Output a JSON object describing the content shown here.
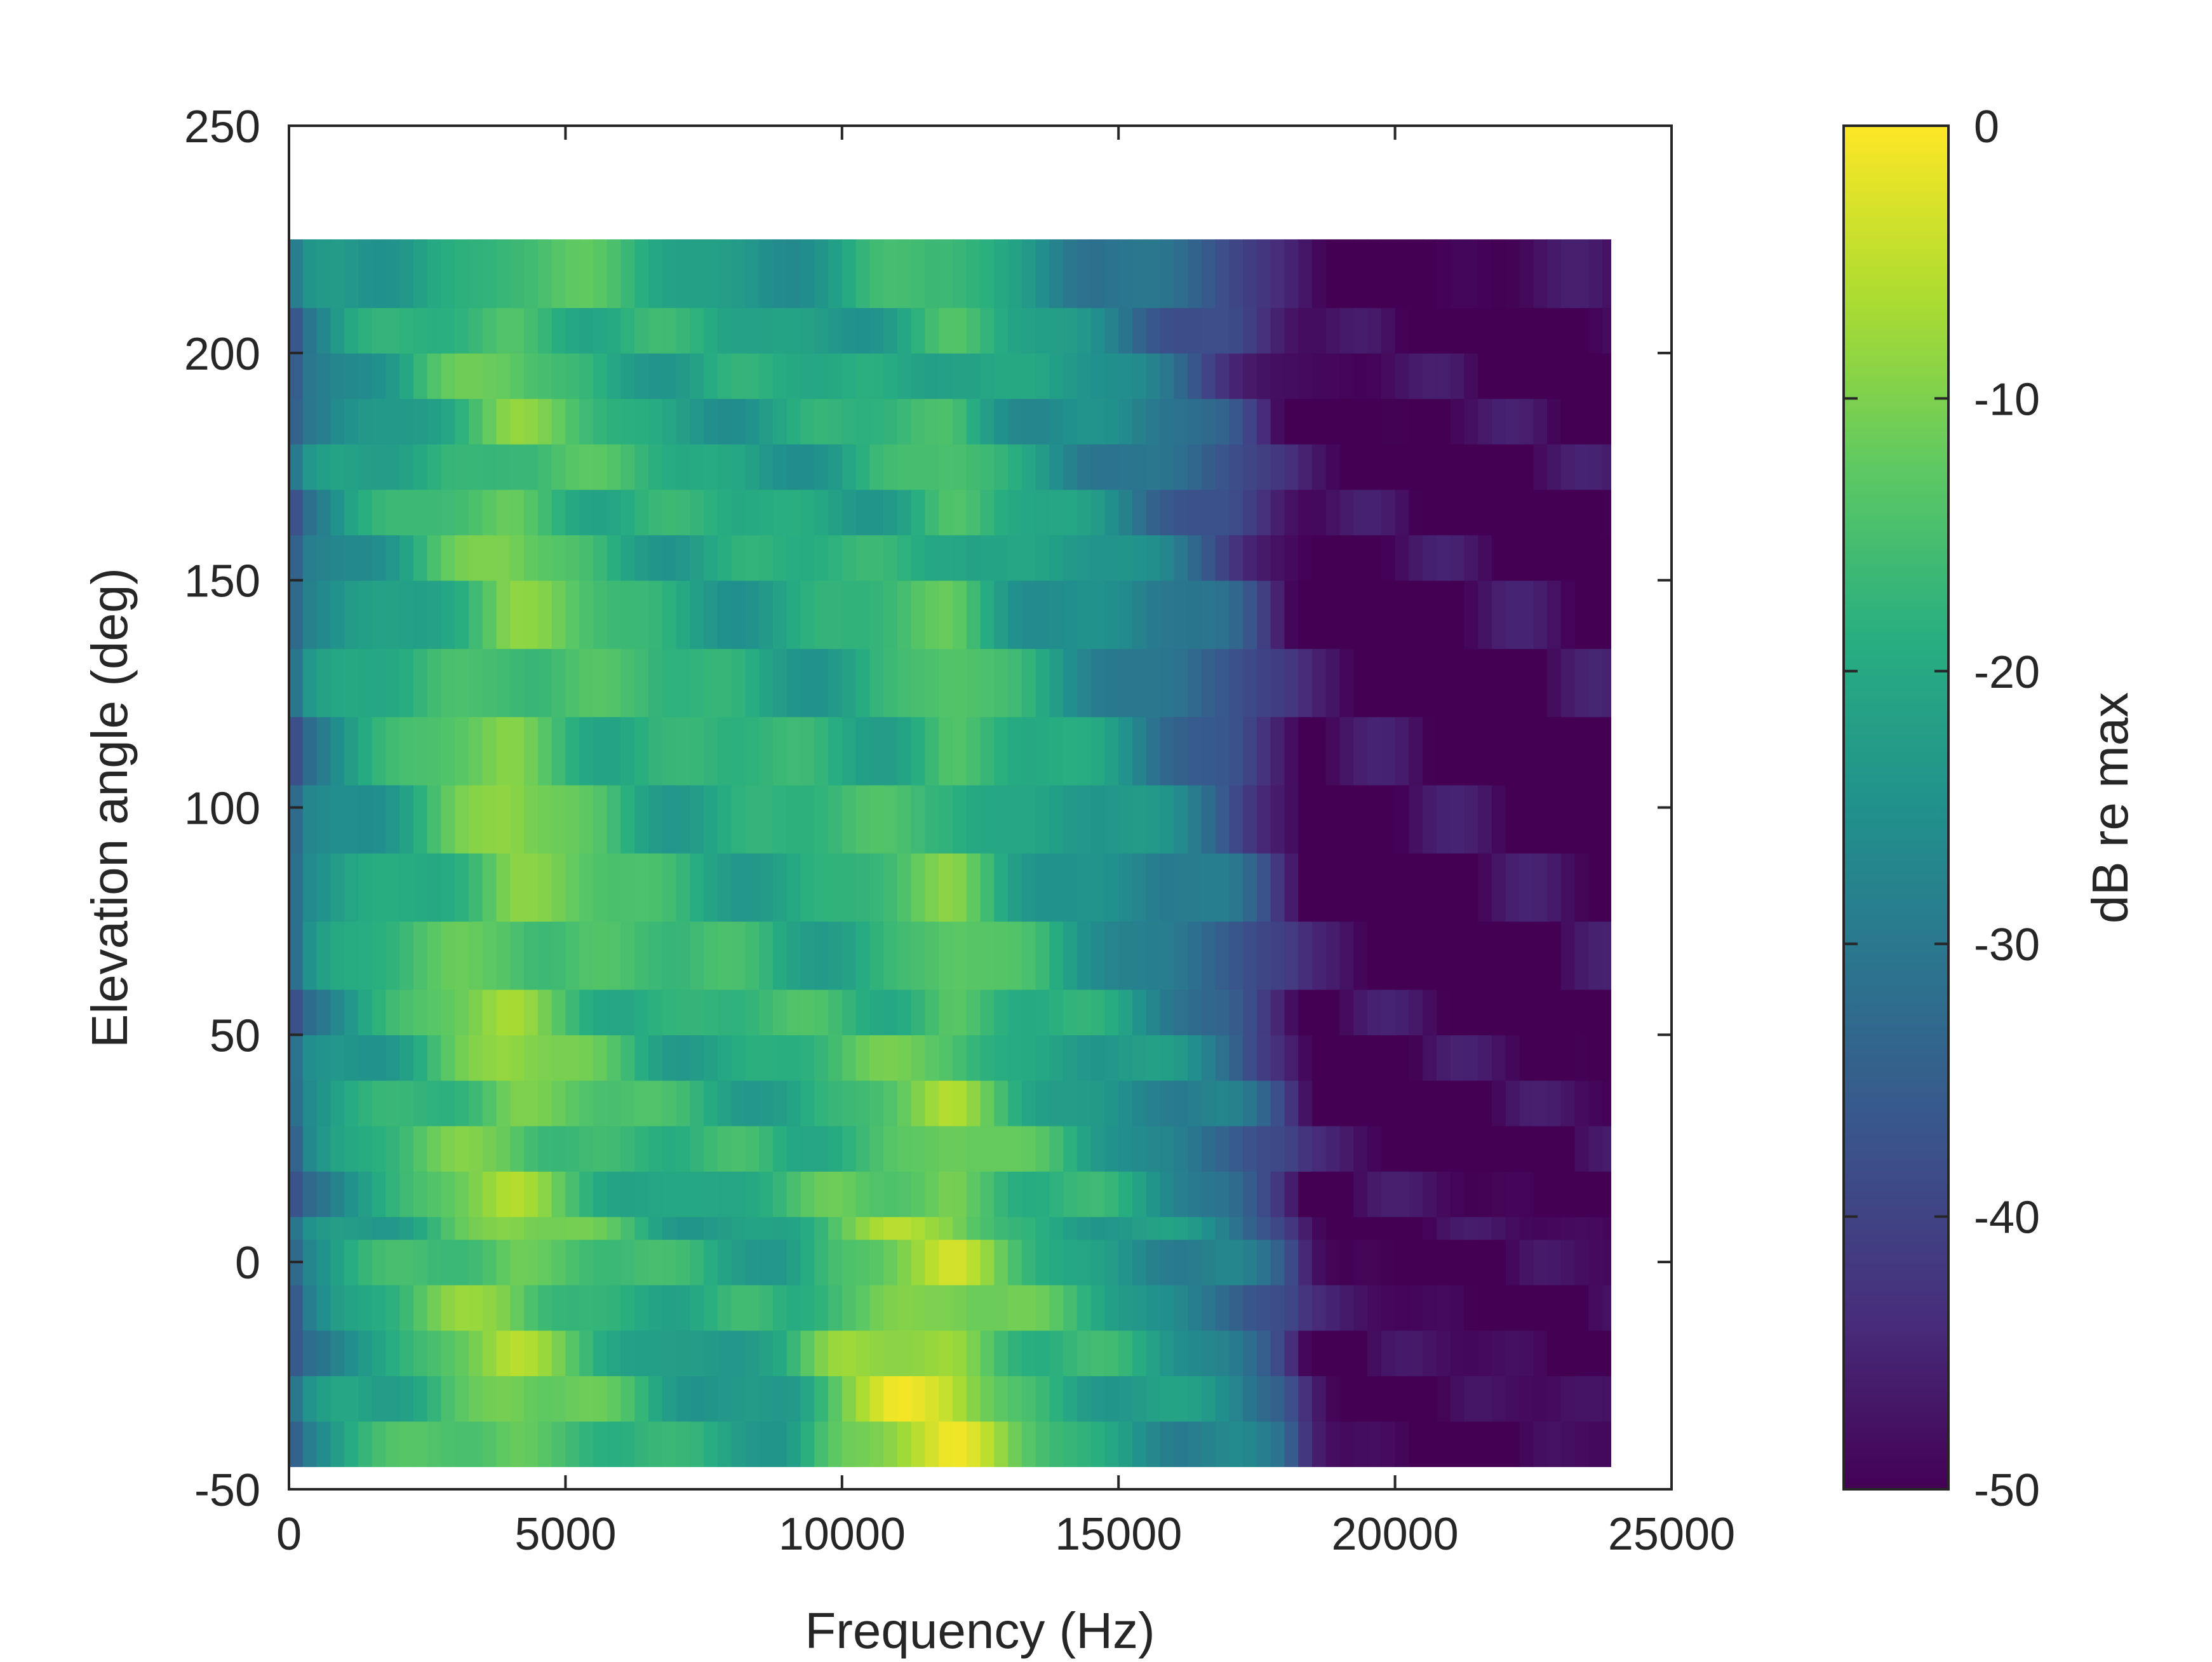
{
  "chart_data": {
    "type": "heatmap",
    "title": "",
    "xlabel": "Frequency (Hz)",
    "ylabel": "Elevation angle (deg)",
    "xlim": [
      0,
      25000
    ],
    "ylim": [
      -50,
      250
    ],
    "x_ticks": [
      0,
      5000,
      10000,
      15000,
      20000,
      25000
    ],
    "x_tick_labels": [
      "0",
      "5000",
      "10000",
      "15000",
      "20000",
      "25000"
    ],
    "y_ticks": [
      -50,
      0,
      50,
      100,
      150,
      200,
      250
    ],
    "y_tick_labels": [
      "-50",
      "0",
      "50",
      "100",
      "150",
      "200",
      "250"
    ],
    "data_extent": {
      "x": [
        0,
        23900
      ],
      "y": [
        -45,
        225
      ]
    },
    "colormap": "viridis",
    "colorbar": {
      "label": "dB re max",
      "range": [
        -50,
        0
      ],
      "ticks": [
        0,
        -10,
        -20,
        -30,
        -40,
        -50
      ],
      "tick_labels": [
        "0",
        "-10",
        "-20",
        "-30",
        "-40",
        "-50"
      ]
    },
    "elevation_bands": [
      -45,
      -35,
      -25,
      -15,
      -5,
      5,
      10,
      20,
      30,
      40,
      50,
      60,
      75,
      90,
      105,
      120,
      135,
      150,
      160,
      170,
      180,
      190,
      200,
      210,
      225
    ],
    "frequency_knots": [
      0,
      250,
      1000,
      2000,
      3000,
      4000,
      5000,
      6000,
      7000,
      8000,
      9000,
      10000,
      11000,
      12000,
      13000,
      14000,
      15000,
      16000,
      17000,
      18000,
      18500,
      19000,
      20000,
      21000,
      23900
    ],
    "level_profile_db": {
      "low_elevation": [
        -38,
        -30,
        -22,
        -18,
        -12,
        -9,
        -14,
        -18,
        -22,
        -22,
        -22,
        -9,
        -4,
        -4,
        -12,
        -16,
        -20,
        -24,
        -27,
        -35,
        -46,
        -50,
        -50,
        -50,
        -50
      ],
      "mid_elevation": [
        -38,
        -28,
        -22,
        -18,
        -13,
        -9,
        -13,
        -16,
        -18,
        -18,
        -18,
        -18,
        -16,
        -12,
        -18,
        -21,
        -24,
        -28,
        -33,
        -44,
        -50,
        -50,
        -50,
        -50,
        -50
      ],
      "high_elevation": [
        -38,
        -30,
        -24,
        -22,
        -17,
        -13,
        -16,
        -19,
        -21,
        -22,
        -22,
        -21,
        -19,
        -17,
        -22,
        -25,
        -28,
        -34,
        -40,
        -48,
        -50,
        -50,
        -50,
        -50,
        -50
      ]
    },
    "grid": false,
    "legend": "colorbar-right"
  }
}
